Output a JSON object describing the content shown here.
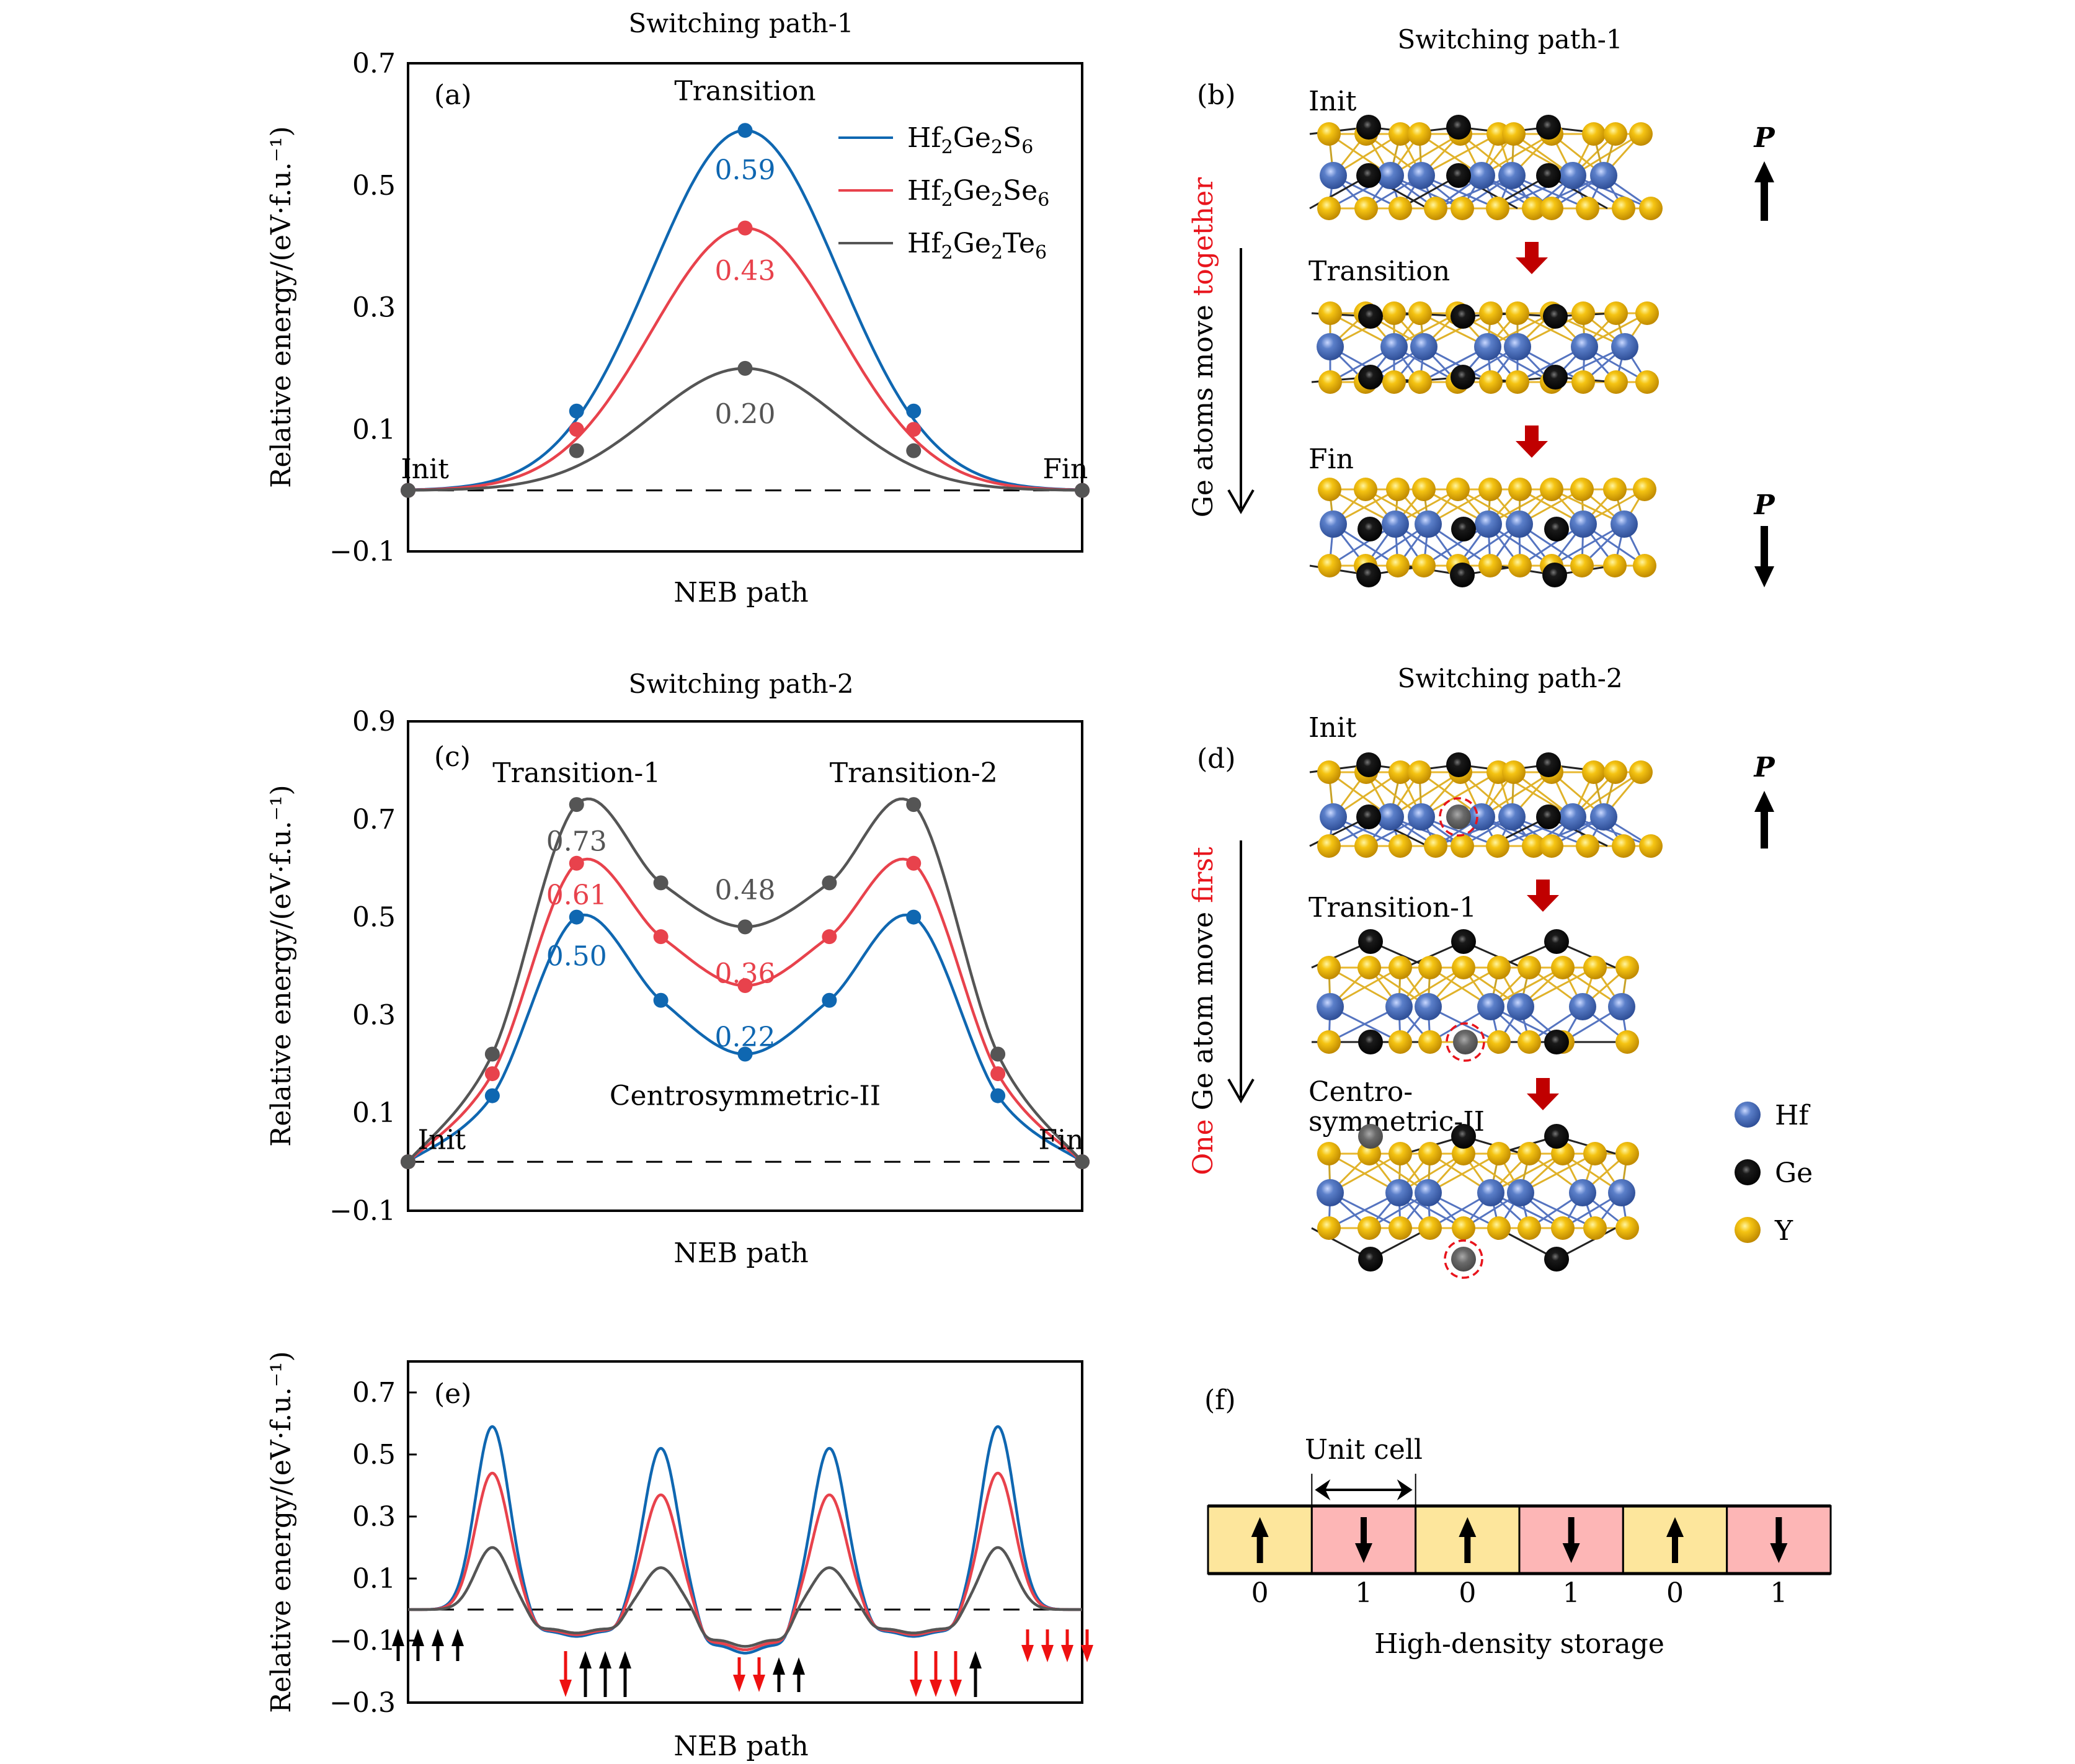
{
  "colors": {
    "blue": "#0f67b1",
    "red": "#e8424c",
    "grey": "#555555",
    "accent_red": "#e8141c",
    "dark_red_arrow": "#c00000",
    "hf_atom": "#5b7fc9",
    "ge_atom": "#111111",
    "y_atom": "#f2bd10",
    "cell_up": "#fde69c",
    "cell_down": "#fdb6b6",
    "digit_zero": "#e0b020",
    "digit_one": "#e87373"
  },
  "legend": [
    {
      "formula": "Hf2Ge2S6",
      "parts": [
        "Hf",
        "2",
        "Ge",
        "2",
        "S",
        "6"
      ],
      "color_key": "blue"
    },
    {
      "formula": "Hf2Ge2Se6",
      "parts": [
        "Hf",
        "2",
        "Ge",
        "2",
        "Se",
        "6"
      ],
      "color_key": "red"
    },
    {
      "formula": "Hf2Ge2Te6",
      "parts": [
        "Hf",
        "2",
        "Ge",
        "2",
        "Te",
        "6"
      ],
      "color_key": "grey"
    }
  ],
  "chart_data": [
    {
      "id": "a",
      "type": "line",
      "panel_label": "(a)",
      "title": "Switching path-1",
      "xlabel": "NEB path",
      "ylabel": "Relative energy/(eV·f.u.⁻¹)",
      "ylim": [
        -0.1,
        0.7
      ],
      "yticks": [
        -0.1,
        0.1,
        0.3,
        0.5,
        0.7
      ],
      "ytick_labels": [
        "−0.1",
        "0.1",
        "0.3",
        "0.5",
        "0.7"
      ],
      "x": [
        0,
        1,
        2,
        3,
        4
      ],
      "reference_line": 0,
      "series": [
        {
          "name": "Hf2Ge2S6",
          "color_key": "blue",
          "values": [
            0,
            0.13,
            0.59,
            0.13,
            0
          ]
        },
        {
          "name": "Hf2Ge2Se6",
          "color_key": "red",
          "values": [
            0,
            0.1,
            0.43,
            0.1,
            0
          ]
        },
        {
          "name": "Hf2Ge2Te6",
          "color_key": "grey",
          "values": [
            0,
            0.065,
            0.2,
            0.065,
            0
          ]
        }
      ],
      "annotations": [
        {
          "text": "Transition",
          "x": 2,
          "y": 0.655,
          "color_key": null
        },
        {
          "text": "Init",
          "x": 0.1,
          "y": 0.035,
          "color_key": null
        },
        {
          "text": "Fin",
          "x": 3.9,
          "y": 0.035,
          "color_key": null
        },
        {
          "text": "0.59",
          "x": 2,
          "y": 0.525,
          "color_key": "blue"
        },
        {
          "text": "0.43",
          "x": 2,
          "y": 0.36,
          "color_key": "red"
        },
        {
          "text": "0.20",
          "x": 2,
          "y": 0.125,
          "color_key": "grey"
        }
      ]
    },
    {
      "id": "c",
      "type": "line",
      "panel_label": "(c)",
      "title": "Switching path-2",
      "xlabel": "NEB path",
      "ylabel": "Relative energy/(eV·f.u.⁻¹)",
      "ylim": [
        -0.1,
        0.9
      ],
      "yticks": [
        -0.1,
        0.1,
        0.3,
        0.5,
        0.7,
        0.9
      ],
      "ytick_labels": [
        "−0.1",
        "0.1",
        "0.3",
        "0.5",
        "0.7",
        "0.9"
      ],
      "x": [
        0,
        1,
        2,
        3,
        4,
        5,
        6,
        7,
        8
      ],
      "reference_line": 0,
      "series": [
        {
          "name": "Hf2Ge2S6",
          "color_key": "blue",
          "values": [
            0,
            0.135,
            0.5,
            0.33,
            0.22,
            0.33,
            0.5,
            0.135,
            0
          ]
        },
        {
          "name": "Hf2Ge2Se6",
          "color_key": "red",
          "values": [
            0,
            0.18,
            0.61,
            0.46,
            0.36,
            0.46,
            0.61,
            0.18,
            0
          ]
        },
        {
          "name": "Hf2Ge2Te6",
          "color_key": "grey",
          "values": [
            0,
            0.22,
            0.73,
            0.57,
            0.48,
            0.57,
            0.73,
            0.22,
            0
          ]
        }
      ],
      "annotations": [
        {
          "text": "Transition-1",
          "x": 2.0,
          "y": 0.795,
          "color_key": null
        },
        {
          "text": "Transition-2",
          "x": 6.0,
          "y": 0.795,
          "color_key": null
        },
        {
          "text": "Centrosymmetric-II",
          "x": 4.0,
          "y": 0.135,
          "color_key": null
        },
        {
          "text": "Init",
          "x": 0.4,
          "y": 0.045,
          "color_key": null
        },
        {
          "text": "Fin",
          "x": 7.75,
          "y": 0.045,
          "color_key": null
        },
        {
          "text": "0.73",
          "x": 2.0,
          "y": 0.655,
          "color_key": "grey"
        },
        {
          "text": "0.61",
          "x": 2.0,
          "y": 0.545,
          "color_key": "red"
        },
        {
          "text": "0.50",
          "x": 2.0,
          "y": 0.42,
          "color_key": "blue"
        },
        {
          "text": "0.48",
          "x": 4.0,
          "y": 0.555,
          "color_key": "grey"
        },
        {
          "text": "0.36",
          "x": 4.0,
          "y": 0.385,
          "color_key": "red"
        },
        {
          "text": "0.22",
          "x": 4.0,
          "y": 0.255,
          "color_key": "blue"
        }
      ]
    },
    {
      "id": "e",
      "type": "line",
      "panel_label": "(e)",
      "title": "",
      "xlabel": "NEB path",
      "ylabel": "Relative energy/(eV·f.u.⁻¹)",
      "ylim": [
        -0.3,
        0.8
      ],
      "yticks": [
        -0.3,
        -0.1,
        0.1,
        0.3,
        0.5,
        0.7
      ],
      "ytick_labels": [
        "−0.3",
        "−0.1",
        "0.1",
        "0.3",
        "0.5",
        "0.7"
      ],
      "x": [
        0,
        1,
        2,
        3,
        4,
        5,
        6,
        7,
        8
      ],
      "reference_line": 0,
      "series": [
        {
          "name": "Hf2Ge2S6",
          "color_key": "blue",
          "values": [
            0,
            0.59,
            -0.08,
            0.52,
            -0.13,
            0.52,
            -0.08,
            0.59,
            0
          ]
        },
        {
          "name": "Hf2Ge2Se6",
          "color_key": "red",
          "values": [
            0,
            0.44,
            -0.075,
            0.37,
            -0.12,
            0.37,
            -0.075,
            0.44,
            0
          ]
        },
        {
          "name": "Hf2Ge2Te6",
          "color_key": "grey",
          "values": [
            0,
            0.2,
            -0.07,
            0.135,
            -0.11,
            0.135,
            -0.07,
            0.2,
            0
          ]
        }
      ],
      "dipole_states": [
        {
          "x": 0,
          "arrows": [
            "up",
            "up",
            "up",
            "up"
          ]
        },
        {
          "x": 2,
          "arrows": [
            "down",
            "up",
            "up",
            "up"
          ]
        },
        {
          "x": 4,
          "arrows": [
            "down",
            "down",
            "up",
            "up"
          ]
        },
        {
          "x": 6,
          "arrows": [
            "down",
            "down",
            "down",
            "up"
          ]
        },
        {
          "x": 8,
          "arrows": [
            "down",
            "down",
            "down",
            "down"
          ]
        }
      ]
    }
  ],
  "panel_b": {
    "label": "(b)",
    "title": "Switching path-1",
    "side_text": [
      {
        "text": "Ge atoms move ",
        "color_key": null
      },
      {
        "text": "together",
        "color_key": "accent_red"
      }
    ],
    "stages": [
      {
        "label": "Init",
        "polarization": "up"
      },
      {
        "label": "Transition",
        "polarization": null
      },
      {
        "label": "Fin",
        "polarization": "down"
      }
    ],
    "polarization_symbol": "P"
  },
  "panel_d": {
    "label": "(d)",
    "title": "Switching path-2",
    "side_text": [
      {
        "text": "One",
        "color_key": "accent_red"
      },
      {
        "text": " Ge atom move ",
        "color_key": null
      },
      {
        "text": "first",
        "color_key": "accent_red"
      }
    ],
    "stages": [
      {
        "label": "Init",
        "polarization": "up"
      },
      {
        "label": "Transition-1",
        "polarization": null
      },
      {
        "label_lines": [
          "Centro-",
          "symmetric-II"
        ],
        "polarization": null
      }
    ],
    "polarization_symbol": "P",
    "atom_legend": [
      {
        "name": "Hf",
        "color_key": "hf_atom"
      },
      {
        "name": "Ge",
        "color_key": "ge_atom"
      },
      {
        "name": "Y",
        "color_key": "y_atom"
      }
    ]
  },
  "panel_f": {
    "label": "(f)",
    "unit_cell_label": "Unit cell",
    "caption": "High-density storage",
    "cells": [
      {
        "direction": "up",
        "bit": "0"
      },
      {
        "direction": "down",
        "bit": "1"
      },
      {
        "direction": "up",
        "bit": "0"
      },
      {
        "direction": "down",
        "bit": "1"
      },
      {
        "direction": "up",
        "bit": "0"
      },
      {
        "direction": "down",
        "bit": "1"
      }
    ]
  }
}
